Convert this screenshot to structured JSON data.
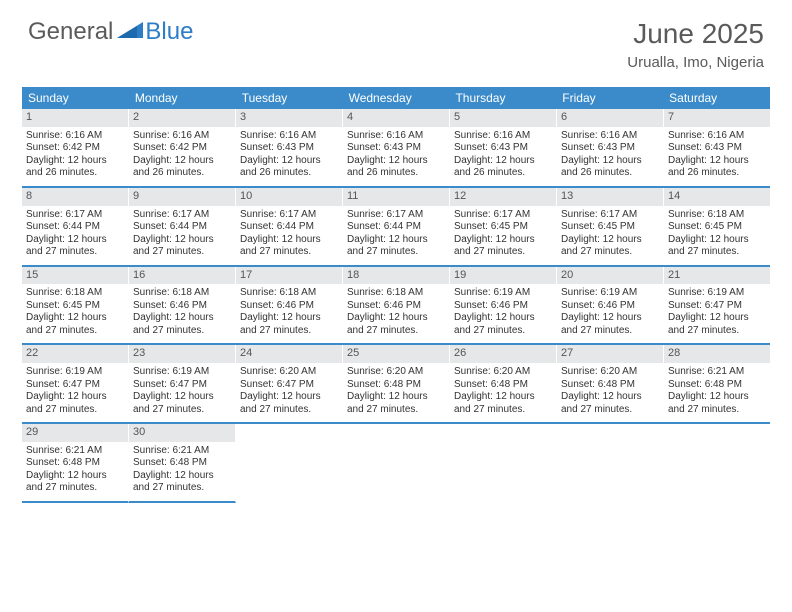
{
  "brand": {
    "word1": "General",
    "word2": "Blue"
  },
  "title": "June 2025",
  "location": "Urualla, Imo, Nigeria",
  "colors": {
    "header_bg": "#3b8bca",
    "header_text": "#ffffff",
    "daynum_bg": "#e5e7e9",
    "daynum_text": "#555555",
    "body_text": "#333333",
    "rule": "#3b8bca",
    "page_bg": "#ffffff",
    "title_text": "#5a5a5a",
    "logo_gray": "#5b5b5b",
    "logo_blue": "#2d7dc7"
  },
  "typography": {
    "month_title_pt": 28,
    "location_pt": 15,
    "dow_pt": 12,
    "daynum_pt": 11,
    "body_pt": 10
  },
  "dow": [
    "Sunday",
    "Monday",
    "Tuesday",
    "Wednesday",
    "Thursday",
    "Friday",
    "Saturday"
  ],
  "weeks": [
    [
      {
        "n": "1",
        "sunrise": "Sunrise: 6:16 AM",
        "sunset": "Sunset: 6:42 PM",
        "daylight": "Daylight: 12 hours and 26 minutes."
      },
      {
        "n": "2",
        "sunrise": "Sunrise: 6:16 AM",
        "sunset": "Sunset: 6:42 PM",
        "daylight": "Daylight: 12 hours and 26 minutes."
      },
      {
        "n": "3",
        "sunrise": "Sunrise: 6:16 AM",
        "sunset": "Sunset: 6:43 PM",
        "daylight": "Daylight: 12 hours and 26 minutes."
      },
      {
        "n": "4",
        "sunrise": "Sunrise: 6:16 AM",
        "sunset": "Sunset: 6:43 PM",
        "daylight": "Daylight: 12 hours and 26 minutes."
      },
      {
        "n": "5",
        "sunrise": "Sunrise: 6:16 AM",
        "sunset": "Sunset: 6:43 PM",
        "daylight": "Daylight: 12 hours and 26 minutes."
      },
      {
        "n": "6",
        "sunrise": "Sunrise: 6:16 AM",
        "sunset": "Sunset: 6:43 PM",
        "daylight": "Daylight: 12 hours and 26 minutes."
      },
      {
        "n": "7",
        "sunrise": "Sunrise: 6:16 AM",
        "sunset": "Sunset: 6:43 PM",
        "daylight": "Daylight: 12 hours and 26 minutes."
      }
    ],
    [
      {
        "n": "8",
        "sunrise": "Sunrise: 6:17 AM",
        "sunset": "Sunset: 6:44 PM",
        "daylight": "Daylight: 12 hours and 27 minutes."
      },
      {
        "n": "9",
        "sunrise": "Sunrise: 6:17 AM",
        "sunset": "Sunset: 6:44 PM",
        "daylight": "Daylight: 12 hours and 27 minutes."
      },
      {
        "n": "10",
        "sunrise": "Sunrise: 6:17 AM",
        "sunset": "Sunset: 6:44 PM",
        "daylight": "Daylight: 12 hours and 27 minutes."
      },
      {
        "n": "11",
        "sunrise": "Sunrise: 6:17 AM",
        "sunset": "Sunset: 6:44 PM",
        "daylight": "Daylight: 12 hours and 27 minutes."
      },
      {
        "n": "12",
        "sunrise": "Sunrise: 6:17 AM",
        "sunset": "Sunset: 6:45 PM",
        "daylight": "Daylight: 12 hours and 27 minutes."
      },
      {
        "n": "13",
        "sunrise": "Sunrise: 6:17 AM",
        "sunset": "Sunset: 6:45 PM",
        "daylight": "Daylight: 12 hours and 27 minutes."
      },
      {
        "n": "14",
        "sunrise": "Sunrise: 6:18 AM",
        "sunset": "Sunset: 6:45 PM",
        "daylight": "Daylight: 12 hours and 27 minutes."
      }
    ],
    [
      {
        "n": "15",
        "sunrise": "Sunrise: 6:18 AM",
        "sunset": "Sunset: 6:45 PM",
        "daylight": "Daylight: 12 hours and 27 minutes."
      },
      {
        "n": "16",
        "sunrise": "Sunrise: 6:18 AM",
        "sunset": "Sunset: 6:46 PM",
        "daylight": "Daylight: 12 hours and 27 minutes."
      },
      {
        "n": "17",
        "sunrise": "Sunrise: 6:18 AM",
        "sunset": "Sunset: 6:46 PM",
        "daylight": "Daylight: 12 hours and 27 minutes."
      },
      {
        "n": "18",
        "sunrise": "Sunrise: 6:18 AM",
        "sunset": "Sunset: 6:46 PM",
        "daylight": "Daylight: 12 hours and 27 minutes."
      },
      {
        "n": "19",
        "sunrise": "Sunrise: 6:19 AM",
        "sunset": "Sunset: 6:46 PM",
        "daylight": "Daylight: 12 hours and 27 minutes."
      },
      {
        "n": "20",
        "sunrise": "Sunrise: 6:19 AM",
        "sunset": "Sunset: 6:46 PM",
        "daylight": "Daylight: 12 hours and 27 minutes."
      },
      {
        "n": "21",
        "sunrise": "Sunrise: 6:19 AM",
        "sunset": "Sunset: 6:47 PM",
        "daylight": "Daylight: 12 hours and 27 minutes."
      }
    ],
    [
      {
        "n": "22",
        "sunrise": "Sunrise: 6:19 AM",
        "sunset": "Sunset: 6:47 PM",
        "daylight": "Daylight: 12 hours and 27 minutes."
      },
      {
        "n": "23",
        "sunrise": "Sunrise: 6:19 AM",
        "sunset": "Sunset: 6:47 PM",
        "daylight": "Daylight: 12 hours and 27 minutes."
      },
      {
        "n": "24",
        "sunrise": "Sunrise: 6:20 AM",
        "sunset": "Sunset: 6:47 PM",
        "daylight": "Daylight: 12 hours and 27 minutes."
      },
      {
        "n": "25",
        "sunrise": "Sunrise: 6:20 AM",
        "sunset": "Sunset: 6:48 PM",
        "daylight": "Daylight: 12 hours and 27 minutes."
      },
      {
        "n": "26",
        "sunrise": "Sunrise: 6:20 AM",
        "sunset": "Sunset: 6:48 PM",
        "daylight": "Daylight: 12 hours and 27 minutes."
      },
      {
        "n": "27",
        "sunrise": "Sunrise: 6:20 AM",
        "sunset": "Sunset: 6:48 PM",
        "daylight": "Daylight: 12 hours and 27 minutes."
      },
      {
        "n": "28",
        "sunrise": "Sunrise: 6:21 AM",
        "sunset": "Sunset: 6:48 PM",
        "daylight": "Daylight: 12 hours and 27 minutes."
      }
    ],
    [
      {
        "n": "29",
        "sunrise": "Sunrise: 6:21 AM",
        "sunset": "Sunset: 6:48 PM",
        "daylight": "Daylight: 12 hours and 27 minutes."
      },
      {
        "n": "30",
        "sunrise": "Sunrise: 6:21 AM",
        "sunset": "Sunset: 6:48 PM",
        "daylight": "Daylight: 12 hours and 27 minutes."
      },
      null,
      null,
      null,
      null,
      null
    ]
  ]
}
